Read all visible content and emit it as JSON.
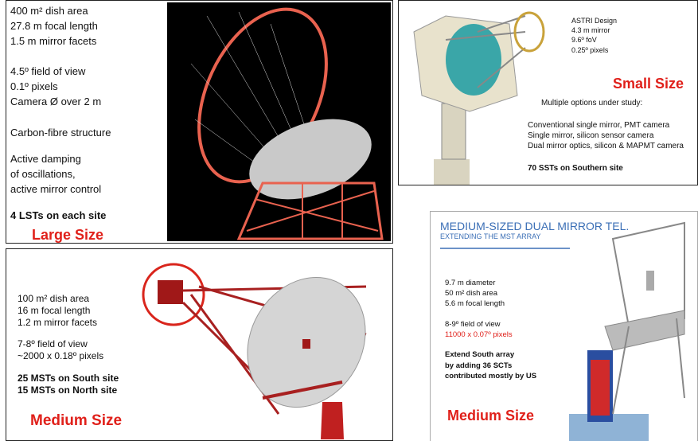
{
  "panels": [
    {
      "lines": [
        "400 m² dish area",
        "27.8 m focal length",
        "1.5 m mirror facets",
        "4.5º field of view",
        "0.1º pixels",
        "Camera Ø over 2 m",
        "Carbon-fibre structure",
        "Active damping",
        "of oscillations,",
        "active mirror control",
        "4 LSTs on each site"
      ],
      "label": "Large Size"
    },
    {
      "design": [
        "ASTRI Design",
        "4.3 m mirror",
        "9.6º foV",
        "0.25º  pixels"
      ],
      "label": "Small Size",
      "lines": [
        "Multiple options under study:",
        "Conventional single mirror, PMT camera",
        "Single mirror, silicon sensor camera",
        "Dual mirror optics, silicon & MAPMT camera",
        "70 SSTs on Southern site"
      ]
    },
    {
      "lines": [
        "100 m² dish area",
        "16 m focal length",
        "1.2 m  mirror facets",
        "7-8º field of view",
        "~2000 x 0.18º pixels",
        "25 MSTs on South site",
        "15 MSTs on North site"
      ],
      "label": "Medium Size"
    },
    {
      "title": "MEDIUM-SIZED DUAL MIRROR TEL.",
      "subtitle": "EXTENDING THE MST ARRAY",
      "lines": [
        "9.7 m diameter",
        "50 m² dish area",
        "5.6 m focal length",
        "8-9º field of view",
        "11000 x 0.07º pixels",
        "Extend South array",
        "by adding 36 SCTs",
        "contributed mostly by US"
      ],
      "label": "Medium Size"
    }
  ]
}
